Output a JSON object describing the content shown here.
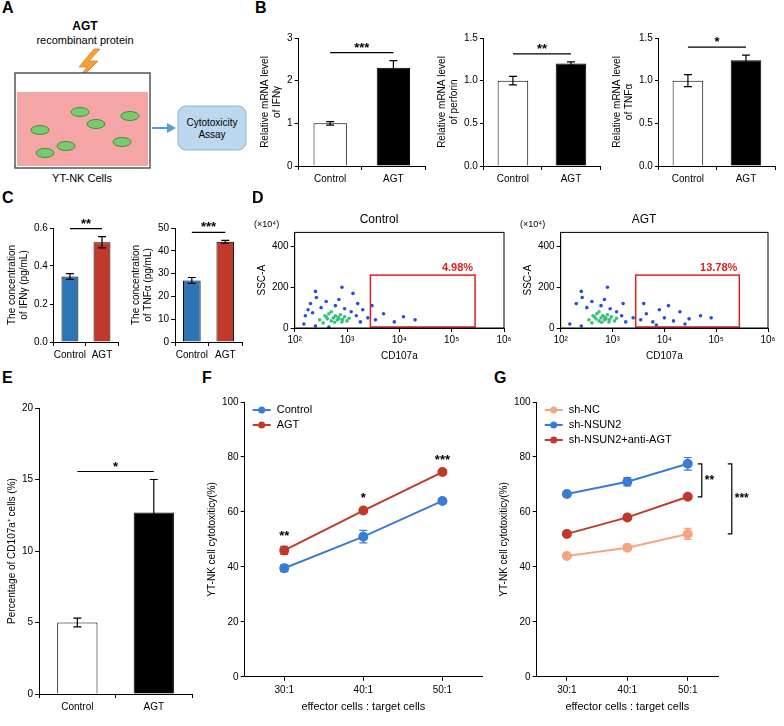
{
  "diagram": {
    "panel": "A",
    "reagent": "AGT",
    "reagent_note": "recombinant protein",
    "cells": "YT-NK Cells",
    "assay": "Cytotoxicity Assay"
  },
  "chart_data": [
    {
      "panel": "B",
      "type": "bar",
      "ylabel": "Relative mRNA level of IFNγ",
      "categories": [
        "Control",
        "AGT"
      ],
      "values": [
        1.0,
        2.3
      ],
      "errors": [
        0.04,
        0.17
      ],
      "colors": [
        "#ffffff",
        "#000000"
      ],
      "ylim": [
        0,
        3
      ],
      "yticks": [
        0,
        1,
        2,
        3
      ],
      "grid": false,
      "significance": "***"
    },
    {
      "type": "bar",
      "ylabel": "Relative mRNA level of perforin",
      "categories": [
        "Control",
        "AGT"
      ],
      "values": [
        1.0,
        1.2
      ],
      "errors": [
        0.05,
        0.02
      ],
      "colors": [
        "#ffffff",
        "#000000"
      ],
      "ylim": [
        0,
        1.5
      ],
      "yticks": [
        {
          "value": 0,
          "label": "0.0"
        },
        0.5,
        {
          "value": 1,
          "label": "1.0"
        },
        1.5
      ],
      "grid": false,
      "significance": "**"
    },
    {
      "type": "bar",
      "ylabel": "Relative mRNA level of TNFα",
      "categories": [
        "Control",
        "AGT"
      ],
      "values": [
        1.0,
        1.24
      ],
      "errors": [
        0.07,
        0.06
      ],
      "colors": [
        "#ffffff",
        "#000000"
      ],
      "ylim": [
        0,
        1.5
      ],
      "yticks": [
        {
          "value": 0,
          "label": "0.0"
        },
        0.5,
        {
          "value": 1,
          "label": "1.0"
        },
        1.5
      ],
      "grid": false,
      "significance": "*"
    },
    {
      "panel": "C",
      "type": "bar",
      "ylabel": "The concentration of IFNγ (pg/mL)",
      "categories": [
        "Control",
        "AGT"
      ],
      "values": [
        0.345,
        0.525
      ],
      "errors": [
        0.015,
        0.03
      ],
      "colors": [
        "#2e75b6",
        "#c0392b"
      ],
      "ylim": [
        0,
        0.6
      ],
      "yticks": [
        {
          "value": 0,
          "label": "0.0"
        },
        0.2,
        0.4,
        0.6
      ],
      "grid": false,
      "significance": "**"
    },
    {
      "type": "bar",
      "ylabel": "The concentration of TNFα (pg/mL)",
      "categories": [
        "Control",
        "AGT"
      ],
      "values": [
        27,
        44
      ],
      "errors": [
        1.3,
        0.6
      ],
      "colors": [
        "#2e75b6",
        "#c0392b"
      ],
      "ylim": [
        0,
        50
      ],
      "yticks": [
        0,
        10,
        20,
        30,
        40,
        50
      ],
      "grid": false,
      "significance": "***"
    },
    {
      "panel": "D",
      "type": "scatter",
      "title": "Control",
      "xlabel": "CD107a",
      "ylabel": "SSC-A",
      "yunit": "(×10⁴)",
      "log": "x",
      "grid": false,
      "xlim": [
        100,
        1000000
      ],
      "xticks": [
        {
          "value": 100,
          "label": "10²"
        },
        {
          "value": 1000,
          "label": "10³"
        },
        {
          "value": 10000,
          "label": "10⁴"
        },
        {
          "value": 100000,
          "label": "10⁵"
        },
        {
          "value": 1000000,
          "label": "10⁶"
        }
      ],
      "ylim": [
        0,
        470
      ],
      "yticks": [
        0,
        200,
        400
      ],
      "series": [
        {
          "color": "#2a4fd6",
          "x": [
            150,
            180,
            200,
            250,
            260,
            320,
            400,
            450,
            600,
            700,
            900,
            1200,
            1500,
            1800,
            2000,
            2500,
            3500,
            5000,
            8000,
            12000,
            1300,
            250,
            800,
            160,
            220,
            1600,
            3000,
            20000
          ],
          "y": [
            20,
            90,
            120,
            10,
            150,
            100,
            130,
            5,
            110,
            140,
            95,
            80,
            60,
            30,
            90,
            50,
            40,
            70,
            30,
            55,
            170,
            180,
            200,
            60,
            75,
            120,
            110,
            40
          ]
        },
        {
          "color": "#36c27a",
          "x": [
            300,
            400,
            500,
            600,
            700,
            800,
            450,
            350,
            550,
            650,
            900,
            1000,
            750,
            420,
            580,
            680,
            820,
            1100,
            500,
            380
          ],
          "y": [
            40,
            55,
            35,
            60,
            45,
            30,
            70,
            25,
            50,
            40,
            55,
            35,
            65,
            45,
            28,
            52,
            42,
            48,
            80,
            60
          ]
        }
      ],
      "gate": {
        "x": [
          2800,
          280000
        ],
        "y": [
          5,
          260
        ],
        "label": "4.98%",
        "color": "#e02020"
      }
    },
    {
      "type": "scatter",
      "title": "AGT",
      "xlabel": "CD107a",
      "ylabel": "SSC-A",
      "yunit": "(×10⁴)",
      "log": "x",
      "grid": false,
      "xlim": [
        100,
        1000000
      ],
      "xticks": [
        {
          "value": 100,
          "label": "10²"
        },
        {
          "value": 1000,
          "label": "10³"
        },
        {
          "value": 10000,
          "label": "10⁴"
        },
        {
          "value": 100000,
          "label": "10⁵"
        },
        {
          "value": 1000000,
          "label": "10⁶"
        }
      ],
      "ylim": [
        0,
        470
      ],
      "yticks": [
        0,
        200,
        400
      ],
      "series": [
        {
          "color": "#2a4fd6",
          "x": [
            150,
            200,
            250,
            260,
            320,
            400,
            600,
            700,
            900,
            1200,
            1500,
            1800,
            2500,
            3500,
            4500,
            6000,
            8000,
            10000,
            15000,
            20000,
            30000,
            50000,
            4000,
            7000,
            12000,
            25000,
            80000,
            250,
            800,
            1600
          ],
          "y": [
            20,
            120,
            10,
            150,
            100,
            130,
            110,
            140,
            95,
            80,
            60,
            30,
            50,
            40,
            70,
            30,
            90,
            50,
            35,
            80,
            45,
            60,
            120,
            15,
            110,
            20,
            50,
            180,
            200,
            120
          ]
        },
        {
          "color": "#36c27a",
          "x": [
            350,
            450,
            550,
            650,
            750,
            850,
            500,
            400,
            600,
            700,
            950,
            1100,
            800,
            480,
            620,
            720,
            880,
            1200,
            550,
            420
          ],
          "y": [
            40,
            55,
            35,
            60,
            45,
            30,
            70,
            25,
            50,
            40,
            55,
            35,
            65,
            45,
            28,
            52,
            42,
            48,
            80,
            60
          ]
        }
      ],
      "gate": {
        "x": [
          2800,
          280000
        ],
        "y": [
          5,
          260
        ],
        "label": "13.78%",
        "color": "#e02020"
      }
    },
    {
      "panel": "E",
      "type": "bar",
      "ylabel": "Percentage of CD107a⁺ cells (%)",
      "categories": [
        "Control",
        "AGT"
      ],
      "values": [
        5.0,
        12.7
      ],
      "errors": [
        0.3,
        2.3
      ],
      "colors": [
        "#ffffff",
        "#000000"
      ],
      "ylim": [
        0,
        20
      ],
      "yticks": [
        0,
        5,
        10,
        15,
        20
      ],
      "grid": false,
      "significance": "*"
    },
    {
      "panel": "F",
      "type": "line",
      "xlabel": "effector cells : target cells",
      "ylabel": "YT-NK cell cytotoxiticy(%)",
      "categories": [
        "30:1",
        "40:1",
        "50:1"
      ],
      "ylim": [
        0,
        100
      ],
      "yticks": [
        0,
        20,
        40,
        60,
        80,
        100
      ],
      "grid": false,
      "legend": "top-left",
      "marker": "circle",
      "series": [
        {
          "name": "Control",
          "color": "#3a7bd5",
          "values": [
            39.5,
            51,
            64
          ],
          "errors": [
            1.2,
            2.3,
            0.5
          ]
        },
        {
          "name": "AGT",
          "color": "#c0392b",
          "values": [
            46,
            60.5,
            74.5
          ],
          "errors": [
            1.5,
            0.8,
            0.8
          ]
        }
      ],
      "significance": [
        "**",
        "*",
        "***"
      ]
    },
    {
      "panel": "G",
      "type": "line",
      "xlabel": "effector cells : target cells",
      "ylabel": "YT-NK cell cytotoxiticy(%)",
      "categories": [
        "30:1",
        "40:1",
        "50:1"
      ],
      "ylim": [
        0,
        100
      ],
      "yticks": [
        0,
        20,
        40,
        60,
        80,
        100
      ],
      "grid": false,
      "legend": "top-left",
      "marker": "circle",
      "series": [
        {
          "name": "sh-NC",
          "color": "#f4a582",
          "values": [
            44,
            47,
            52
          ],
          "errors": [
            0.8,
            1.0,
            2.0
          ]
        },
        {
          "name": "sh-NSUN2",
          "color": "#3a7bd5",
          "values": [
            66.5,
            71,
            77.5
          ],
          "errors": [
            0.8,
            1.5,
            2.3
          ]
        },
        {
          "name": "sh-NSUN2+anti-AGT",
          "color": "#c0392b",
          "values": [
            52,
            58,
            65.5
          ],
          "errors": [
            0.5,
            0.8,
            0.8
          ]
        }
      ],
      "significance": [
        {
          "between": [
            "sh-NSUN2",
            "sh-NSUN2+anti-AGT"
          ],
          "label": "**"
        },
        {
          "between": [
            "sh-NSUN2",
            "sh-NC"
          ],
          "label": "***"
        }
      ]
    }
  ]
}
